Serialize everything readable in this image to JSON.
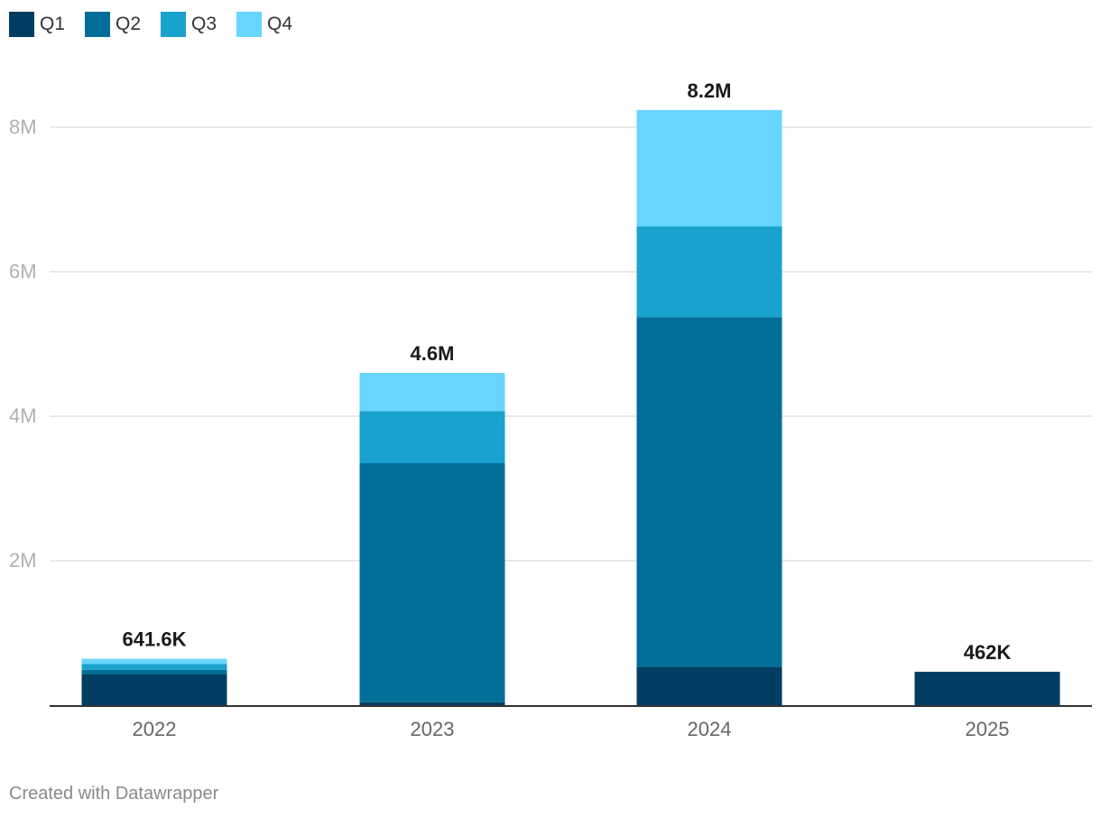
{
  "chart_data": {
    "type": "bar",
    "stacked": true,
    "categories": [
      "2022",
      "2023",
      "2024",
      "2025"
    ],
    "series": [
      {
        "name": "Q1",
        "color": "#003d62",
        "values": [
          430000,
          40000,
          530000,
          462000
        ]
      },
      {
        "name": "Q2",
        "color": "#006e98",
        "values": [
          60000,
          3310000,
          4840000,
          0
        ]
      },
      {
        "name": "Q3",
        "color": "#1aa2ce",
        "values": [
          80000,
          720000,
          1260000,
          0
        ]
      },
      {
        "name": "Q4",
        "color": "#68d5fe",
        "values": [
          71600,
          530000,
          1610000,
          0
        ]
      }
    ],
    "totals_labels": [
      "641.6K",
      "4.6M",
      "8.2M",
      "462K"
    ],
    "ylim": [
      0,
      8000000
    ],
    "yticks": [
      {
        "value": 2000000,
        "label": "2M"
      },
      {
        "value": 4000000,
        "label": "4M"
      },
      {
        "value": 6000000,
        "label": "6M"
      },
      {
        "value": 8000000,
        "label": "8M"
      }
    ],
    "grid": true,
    "legend_position": "top-left",
    "title": "",
    "xlabel": "",
    "ylabel": ""
  },
  "footer": {
    "credit": "Created with Datawrapper"
  }
}
